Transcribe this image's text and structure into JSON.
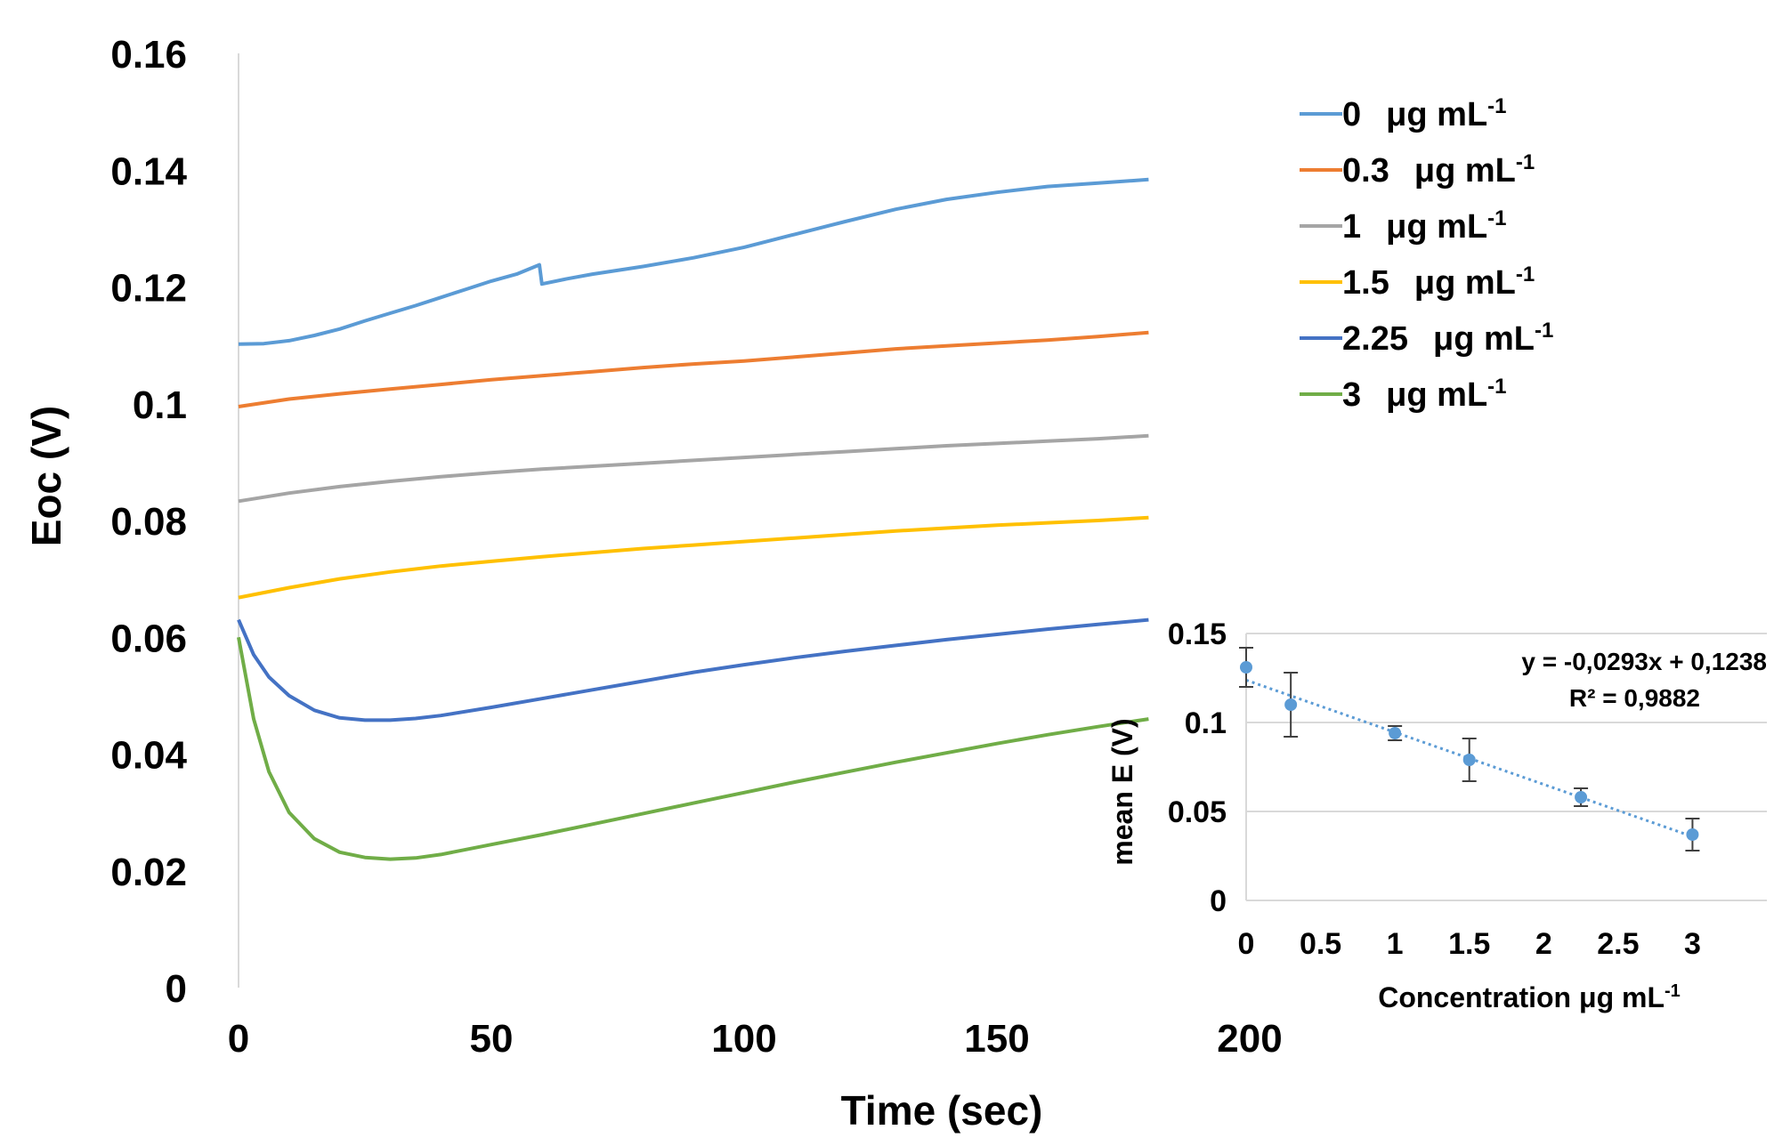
{
  "chart_data": [
    {
      "type": "line",
      "title": "",
      "xlabel": "Time (sec)",
      "ylabel": "Eoc (V)",
      "xlim": [
        0,
        200
      ],
      "ylim": [
        0,
        0.16
      ],
      "x_ticks": [
        "0",
        "50",
        "100",
        "150",
        "200"
      ],
      "y_ticks": [
        "0",
        "0.02",
        "0.04",
        "0.06",
        "0.08",
        "0.1",
        "0.12",
        "0.14",
        "0.16"
      ],
      "grid": false,
      "legend_position": "top-right",
      "series": [
        {
          "name": "0",
          "unit": "μg mL",
          "unit_sup": "-1",
          "color": "#5B9BD5",
          "x": [
            0,
            5,
            10,
            15,
            20,
            25,
            30,
            35,
            40,
            45,
            50,
            55,
            59.5,
            60,
            65,
            70,
            80,
            90,
            100,
            110,
            120,
            130,
            140,
            150,
            160,
            170,
            180
          ],
          "y": [
            0.1102,
            0.1103,
            0.1108,
            0.1117,
            0.1128,
            0.1142,
            0.1155,
            0.1168,
            0.1182,
            0.1196,
            0.121,
            0.1222,
            0.1238,
            0.1205,
            0.1214,
            0.1222,
            0.1235,
            0.125,
            0.1268,
            0.129,
            0.1312,
            0.1333,
            0.135,
            0.1362,
            0.1372,
            0.1378,
            0.1384
          ]
        },
        {
          "name": "0.3",
          "unit": "μg mL",
          "unit_sup": "-1",
          "color": "#ED7D31",
          "x": [
            0,
            10,
            20,
            30,
            40,
            50,
            60,
            70,
            80,
            90,
            100,
            110,
            120,
            130,
            140,
            150,
            160,
            170,
            180
          ],
          "y": [
            0.0995,
            0.1008,
            0.1017,
            0.1025,
            0.1033,
            0.1041,
            0.1048,
            0.1055,
            0.1062,
            0.1068,
            0.1073,
            0.108,
            0.1087,
            0.1094,
            0.1099,
            0.1104,
            0.1109,
            0.1115,
            0.1122
          ]
        },
        {
          "name": "1",
          "unit": "μg mL",
          "unit_sup": "-1",
          "color": "#A5A5A5",
          "x": [
            0,
            10,
            20,
            30,
            40,
            50,
            60,
            70,
            80,
            90,
            100,
            110,
            120,
            130,
            140,
            150,
            160,
            170,
            180
          ],
          "y": [
            0.0833,
            0.0847,
            0.0858,
            0.0867,
            0.0875,
            0.0882,
            0.0888,
            0.0893,
            0.0898,
            0.0903,
            0.0908,
            0.0913,
            0.0918,
            0.0923,
            0.0928,
            0.0932,
            0.0936,
            0.094,
            0.0945
          ]
        },
        {
          "name": "1.5",
          "unit": "μg mL",
          "unit_sup": "-1",
          "color": "#FFC000",
          "x": [
            0,
            10,
            20,
            30,
            40,
            50,
            60,
            70,
            80,
            90,
            100,
            110,
            120,
            130,
            140,
            150,
            160,
            170,
            180
          ],
          "y": [
            0.0668,
            0.0685,
            0.07,
            0.0712,
            0.0722,
            0.073,
            0.0738,
            0.0745,
            0.0752,
            0.0758,
            0.0764,
            0.077,
            0.0776,
            0.0782,
            0.0787,
            0.0792,
            0.0796,
            0.08,
            0.0805
          ]
        },
        {
          "name": "2.25",
          "unit": "μg mL",
          "unit_sup": "-1",
          "color": "#4472C4",
          "x": [
            0,
            3,
            6,
            10,
            15,
            20,
            25,
            30,
            35,
            40,
            50,
            60,
            70,
            80,
            90,
            100,
            110,
            120,
            130,
            140,
            150,
            160,
            170,
            180
          ],
          "y": [
            0.063,
            0.057,
            0.0532,
            0.05,
            0.0475,
            0.0462,
            0.0458,
            0.0458,
            0.0461,
            0.0466,
            0.048,
            0.0495,
            0.051,
            0.0525,
            0.054,
            0.0553,
            0.0565,
            0.0576,
            0.0586,
            0.0596,
            0.0605,
            0.0614,
            0.0622,
            0.063
          ]
        },
        {
          "name": "3",
          "unit": "μg mL",
          "unit_sup": "-1",
          "color": "#70AD47",
          "x": [
            0,
            3,
            6,
            10,
            15,
            20,
            25,
            30,
            35,
            40,
            50,
            60,
            70,
            80,
            90,
            100,
            110,
            120,
            130,
            140,
            150,
            160,
            170,
            180
          ],
          "y": [
            0.06,
            0.046,
            0.037,
            0.03,
            0.0255,
            0.0232,
            0.0223,
            0.022,
            0.0222,
            0.0228,
            0.0245,
            0.0262,
            0.028,
            0.0298,
            0.0316,
            0.0334,
            0.0352,
            0.0369,
            0.0386,
            0.0402,
            0.0418,
            0.0433,
            0.0447,
            0.046
          ]
        }
      ]
    },
    {
      "type": "scatter",
      "title": "",
      "xlabel": "Concentration μg mL",
      "xlabel_sup": "-1",
      "ylabel": "mean E (V)",
      "xlim": [
        0,
        3.5
      ],
      "ylim": [
        0,
        0.15
      ],
      "x_ticks": [
        "0",
        "0.5",
        "1",
        "1.5",
        "2",
        "2.5",
        "3"
      ],
      "y_ticks": [
        "0",
        "0.05",
        "0.1",
        "0.15"
      ],
      "grid": true,
      "series": [
        {
          "name": "mean E",
          "color": "#5B9BD5",
          "x": [
            0,
            0.3,
            1,
            1.5,
            2.25,
            3
          ],
          "y": [
            0.131,
            0.11,
            0.094,
            0.079,
            0.058,
            0.037
          ],
          "error": [
            0.011,
            0.018,
            0.004,
            0.012,
            0.005,
            0.009
          ]
        }
      ],
      "trendline": {
        "type": "linear",
        "slope": -0.0293,
        "intercept": 0.1238,
        "color": "#5B9BD5",
        "style": "dotted"
      },
      "equation": "y = -0,0293x + 0,1238",
      "r_squared": "R² = 0,9882"
    }
  ]
}
